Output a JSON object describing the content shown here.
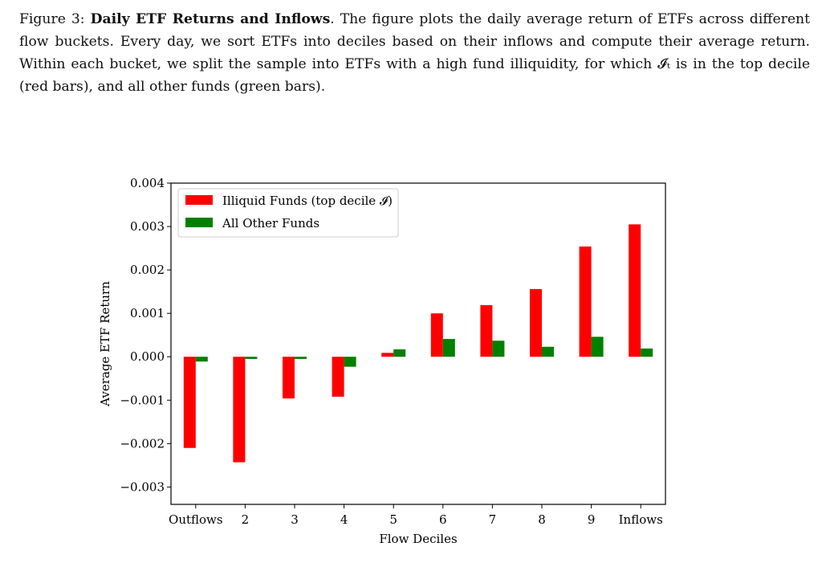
{
  "caption": {
    "figure_label": "Figure 3:",
    "title": "Daily ETF Returns and Inflows",
    "text": "The figure plots the daily average return of ETFs across different flow buckets. Every day, we sort ETFs into deciles based on their inflows and compute their average return. Within each bucket, we split the sample into ETFs with a high fund illiquidity, for which 𝓘ₜ is in the top decile (red bars), and all other funds (green bars)."
  },
  "chart_data": {
    "type": "bar",
    "title": "",
    "xlabel": "Flow Deciles",
    "ylabel": "Average ETF Return",
    "categories": [
      "Outflows",
      "2",
      "3",
      "4",
      "5",
      "6",
      "7",
      "8",
      "9",
      "Inflows"
    ],
    "series": [
      {
        "name": "Illiquid Funds (top decile 𝓘)",
        "color": "#ff0000",
        "values": [
          -0.0021,
          -0.00243,
          -0.00096,
          -0.00092,
          9e-05,
          0.001,
          0.00119,
          0.00156,
          0.00254,
          0.00305
        ]
      },
      {
        "name": "All Other Funds",
        "color": "#008000",
        "values": [
          -0.00011,
          -5e-05,
          -5e-05,
          -0.00023,
          0.00017,
          0.00041,
          0.00037,
          0.00023,
          0.00046,
          0.00019
        ]
      }
    ],
    "ylim": [
      -0.0034,
      0.004
    ],
    "yticks": [
      0.004,
      0.003,
      0.002,
      0.001,
      0.0,
      -0.001,
      -0.002,
      -0.003
    ],
    "ytick_labels": [
      "0.004",
      "0.003",
      "0.002",
      "0.001",
      "0.000",
      "−0.001",
      "−0.002",
      "−0.003"
    ],
    "grid": false,
    "legend_position": "top-left"
  }
}
